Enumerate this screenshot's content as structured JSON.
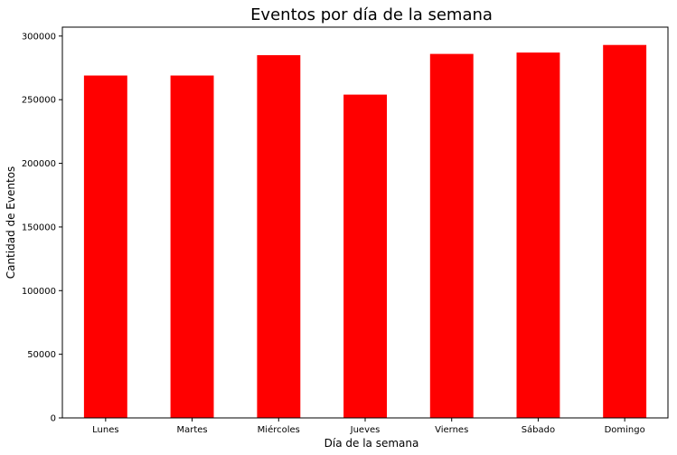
{
  "chart_data": {
    "type": "bar",
    "title": "Eventos por día de la semana",
    "xlabel": "Día de la semana",
    "ylabel": "Cantidad de Eventos",
    "categories": [
      "Lunes",
      "Martes",
      "Miércoles",
      "Jueves",
      "Viernes",
      "Sábado",
      "Domingo"
    ],
    "values": [
      269000,
      269000,
      285000,
      254000,
      286000,
      287000,
      293000
    ],
    "ylim": [
      0,
      307000
    ],
    "yticks": [
      0,
      50000,
      100000,
      150000,
      200000,
      250000,
      300000
    ],
    "bar_color": "#ff0000",
    "grid": false,
    "legend": "none"
  }
}
